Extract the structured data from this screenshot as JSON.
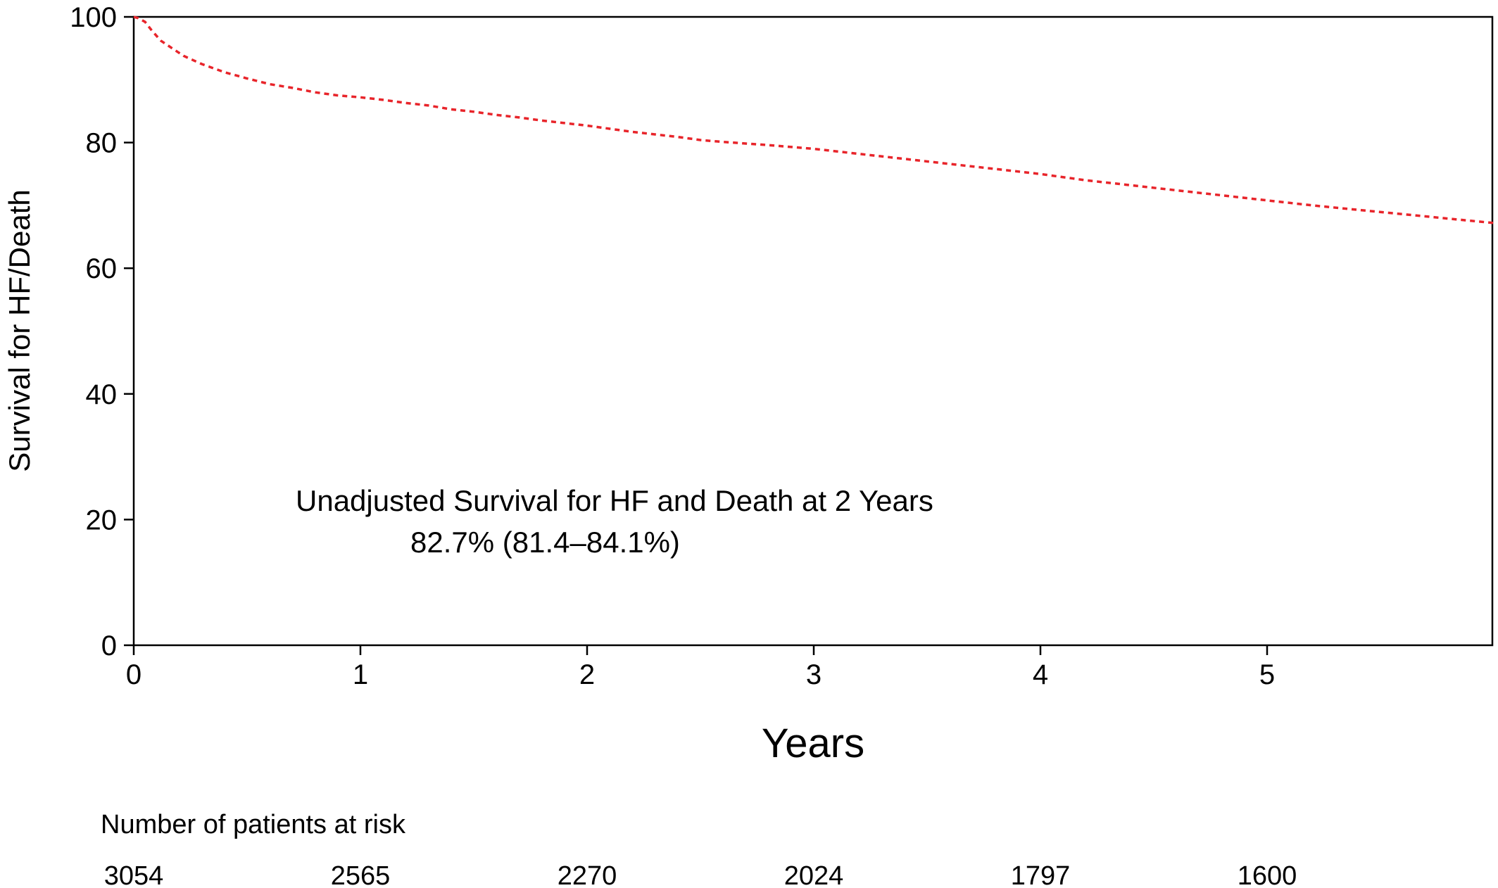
{
  "chart_data": {
    "type": "line",
    "title": "",
    "xlabel": "Years",
    "ylabel": "Survival for HF/Death",
    "xlim": [
      0,
      6
    ],
    "ylim": [
      0,
      100
    ],
    "x_ticks": [
      0,
      1,
      2,
      3,
      4,
      5
    ],
    "y_ticks": [
      0,
      20,
      40,
      60,
      80,
      100
    ],
    "grid": false,
    "series": [
      {
        "color": "#e8242a",
        "line_style": "dashed",
        "x": [
          0,
          0.02,
          0.05,
          0.08,
          0.12,
          0.17,
          0.22,
          0.3,
          0.4,
          0.5,
          0.6,
          0.7,
          0.8,
          0.9,
          1.0,
          1.1,
          1.2,
          1.3,
          1.4,
          1.5,
          1.6,
          1.7,
          1.8,
          1.9,
          2.0,
          2.1,
          2.2,
          2.3,
          2.4,
          2.5,
          2.6,
          2.8,
          3.0,
          3.2,
          3.4,
          3.6,
          3.8,
          4.0,
          4.2,
          4.4,
          4.6,
          4.8,
          5.0,
          5.2,
          5.4,
          5.6,
          5.8,
          6.0
        ],
        "y": [
          100,
          99.8,
          99.2,
          97.8,
          96.2,
          95.0,
          93.8,
          92.5,
          91.2,
          90.2,
          89.3,
          88.7,
          88.0,
          87.5,
          87.2,
          86.8,
          86.3,
          85.9,
          85.3,
          84.9,
          84.4,
          84.0,
          83.5,
          83.1,
          82.7,
          82.2,
          81.7,
          81.3,
          80.9,
          80.4,
          80.1,
          79.6,
          79.0,
          78.2,
          77.4,
          76.6,
          75.8,
          75.0,
          74.0,
          73.2,
          72.4,
          71.6,
          70.8,
          70.0,
          69.3,
          68.6,
          67.9,
          67.2
        ]
      }
    ],
    "annotation": {
      "line1": "Unadjusted Survival for HF and Death at 2 Years",
      "line2": "82.7% (81.4–84.1%)"
    },
    "risk_table": {
      "title": "Number of patients at risk",
      "x": [
        0,
        1,
        2,
        3,
        4,
        5
      ],
      "values": [
        "3054",
        "2565",
        "2270",
        "2024",
        "1797",
        "1600"
      ]
    }
  }
}
